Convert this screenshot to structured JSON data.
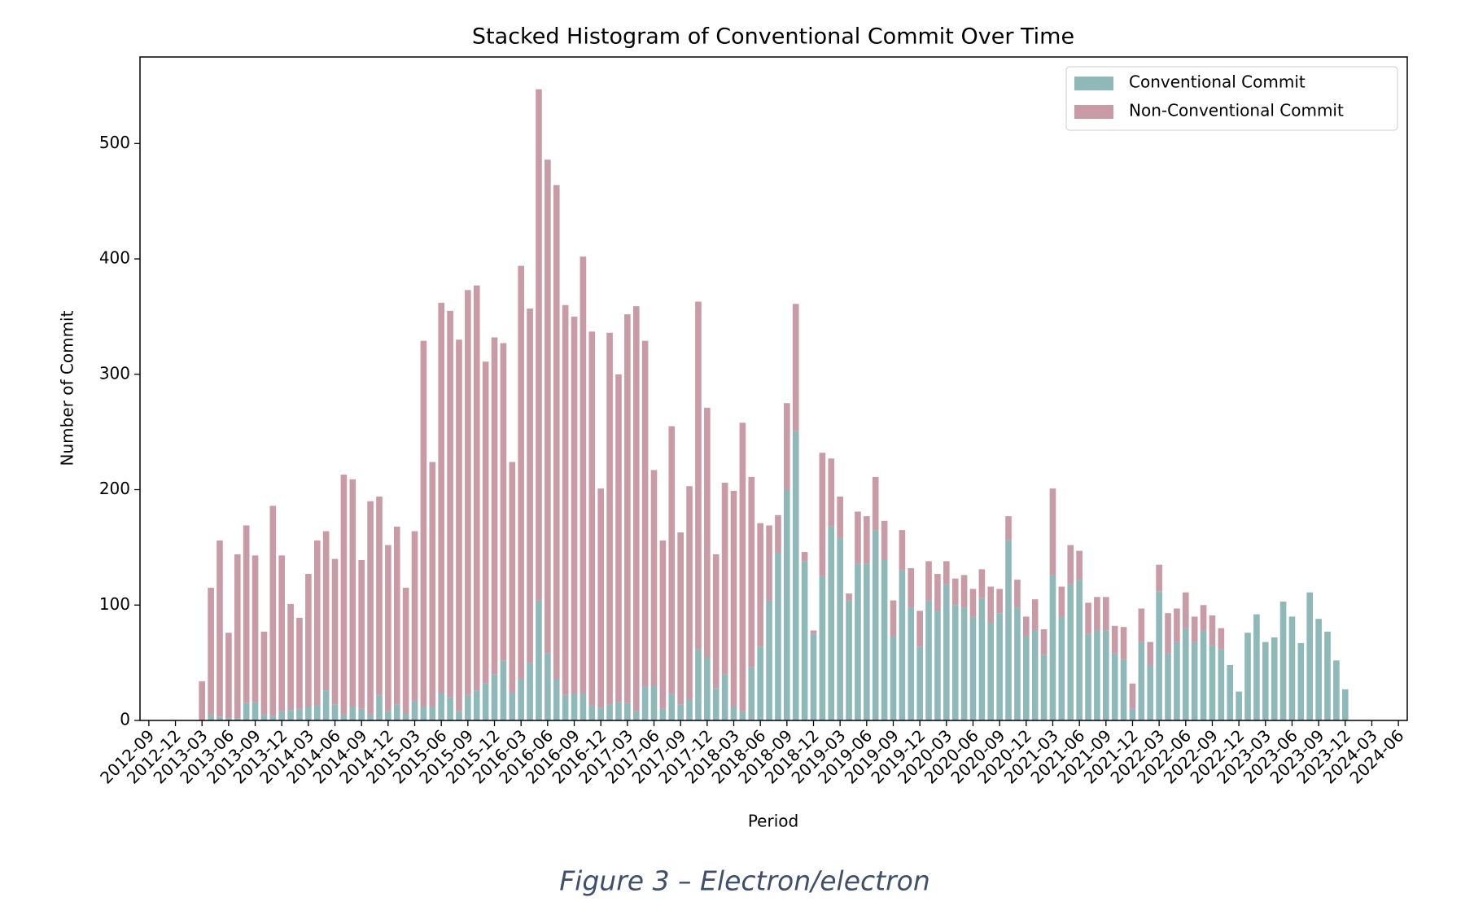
{
  "chart_data": {
    "type": "histogram_stacked",
    "title": "Stacked Histogram of Conventional Commit Over Time",
    "xlabel": "Period",
    "ylabel": "Number of Commit",
    "caption": "Figure 3 – Electron/electron",
    "x": [
      "2013-03",
      "2013-04",
      "2013-05",
      "2013-06",
      "2013-07",
      "2013-08",
      "2013-09",
      "2013-10",
      "2013-11",
      "2013-12",
      "2014-01",
      "2014-02",
      "2014-03",
      "2014-04",
      "2014-05",
      "2014-06",
      "2014-07",
      "2014-08",
      "2014-09",
      "2014-10",
      "2014-11",
      "2014-12",
      "2015-01",
      "2015-02",
      "2015-03",
      "2015-04",
      "2015-05",
      "2015-06",
      "2015-07",
      "2015-08",
      "2015-09",
      "2015-10",
      "2015-11",
      "2015-12",
      "2016-01",
      "2016-02",
      "2016-03",
      "2016-04",
      "2016-05",
      "2016-06",
      "2016-07",
      "2016-08",
      "2016-09",
      "2016-10",
      "2016-11",
      "2016-12",
      "2017-01",
      "2017-02",
      "2017-03",
      "2017-04",
      "2017-05",
      "2017-06",
      "2017-07",
      "2017-08",
      "2017-09",
      "2017-10",
      "2017-11",
      "2017-12",
      "2018-01",
      "2018-02",
      "2018-03",
      "2018-04",
      "2018-05",
      "2018-06",
      "2018-07",
      "2018-08",
      "2018-09",
      "2018-10",
      "2018-11",
      "2018-12",
      "2019-01",
      "2019-02",
      "2019-03",
      "2019-04",
      "2019-05",
      "2019-06",
      "2019-07",
      "2019-08",
      "2019-09",
      "2019-10",
      "2019-11",
      "2019-12",
      "2020-01",
      "2020-02",
      "2020-03",
      "2020-04",
      "2020-05",
      "2020-06",
      "2020-07",
      "2020-08",
      "2020-09",
      "2020-10",
      "2020-11",
      "2020-12",
      "2021-01",
      "2021-02",
      "2021-03",
      "2021-04",
      "2021-05",
      "2021-06",
      "2021-07",
      "2021-08",
      "2021-09",
      "2021-10",
      "2021-11",
      "2021-12",
      "2022-01",
      "2022-02",
      "2022-03",
      "2022-04",
      "2022-05",
      "2022-06",
      "2022-07",
      "2022-08",
      "2022-09",
      "2022-10",
      "2022-11",
      "2022-12",
      "2023-01",
      "2023-02",
      "2023-03",
      "2023-04",
      "2023-05",
      "2023-06",
      "2023-07",
      "2023-08",
      "2023-09",
      "2023-10",
      "2023-11",
      "2023-12"
    ],
    "series": [
      {
        "name": "Conventional Commit",
        "color": "#8fb8b8",
        "values": [
          0,
          5,
          3,
          2,
          2,
          15,
          16,
          5,
          4,
          8,
          9,
          10,
          12,
          13,
          26,
          14,
          5,
          12,
          10,
          5,
          22,
          8,
          14,
          6,
          17,
          12,
          12,
          24,
          20,
          8,
          22,
          26,
          32,
          40,
          52,
          24,
          36,
          50,
          104,
          58,
          36,
          22,
          24,
          24,
          13,
          11,
          14,
          16,
          15,
          8,
          29,
          30,
          10,
          23,
          14,
          18,
          62,
          54,
          28,
          40,
          12,
          8,
          46,
          64,
          104,
          145,
          200,
          251,
          138,
          75,
          125,
          168,
          158,
          104,
          136,
          136,
          165,
          139,
          73,
          130,
          98,
          64,
          104,
          95,
          118,
          100,
          98,
          90,
          106,
          85,
          93,
          156,
          98,
          73,
          78,
          57,
          126,
          90,
          118,
          122,
          75,
          78,
          78,
          58,
          53,
          10,
          68,
          48,
          112,
          58,
          68,
          80,
          68,
          78,
          65,
          62,
          48,
          25,
          76,
          92,
          68,
          72,
          103,
          90,
          67,
          111,
          88,
          77,
          52,
          27
        ]
      },
      {
        "name": "Non-Conventional Commit",
        "color": "#c89ba6",
        "values": [
          34,
          110,
          153,
          74,
          142,
          154,
          127,
          72,
          182,
          135,
          92,
          79,
          115,
          143,
          138,
          126,
          208,
          197,
          129,
          185,
          172,
          144,
          154,
          109,
          147,
          317,
          212,
          338,
          335,
          322,
          351,
          351,
          279,
          292,
          275,
          200,
          358,
          307,
          443,
          428,
          428,
          338,
          326,
          378,
          324,
          190,
          322,
          284,
          337,
          351,
          300,
          187,
          146,
          232,
          149,
          185,
          301,
          217,
          116,
          166,
          187,
          250,
          165,
          107,
          65,
          33,
          75,
          110,
          8,
          3,
          107,
          59,
          36,
          6,
          45,
          41,
          46,
          34,
          31,
          35,
          34,
          31,
          34,
          32,
          20,
          23,
          28,
          24,
          25,
          31,
          21,
          21,
          24,
          17,
          27,
          22,
          75,
          26,
          34,
          25,
          27,
          29,
          29,
          24,
          28,
          22,
          29,
          20,
          23,
          35,
          29,
          31,
          22,
          22,
          26,
          18,
          0,
          0,
          0,
          0,
          0,
          0,
          0,
          0,
          0,
          0,
          0,
          0,
          0,
          0
        ]
      }
    ],
    "xlim": [
      "2012-08",
      "2024-07"
    ],
    "xticks": [
      "2012-09",
      "2012-12",
      "2013-03",
      "2013-06",
      "2013-09",
      "2013-12",
      "2014-03",
      "2014-06",
      "2014-09",
      "2014-12",
      "2015-03",
      "2015-06",
      "2015-09",
      "2015-12",
      "2016-03",
      "2016-06",
      "2016-09",
      "2016-12",
      "2017-03",
      "2017-06",
      "2017-09",
      "2017-12",
      "2018-03",
      "2018-06",
      "2018-09",
      "2018-12",
      "2019-03",
      "2019-06",
      "2019-09",
      "2019-12",
      "2020-03",
      "2020-06",
      "2020-09",
      "2020-12",
      "2021-03",
      "2021-06",
      "2021-09",
      "2021-12",
      "2022-03",
      "2022-06",
      "2022-09",
      "2022-12",
      "2023-03",
      "2023-06",
      "2023-09",
      "2023-12",
      "2024-03",
      "2024-06"
    ],
    "ylim": [
      0,
      575
    ],
    "yticks": [
      0,
      100,
      200,
      300,
      400,
      500
    ],
    "grid": false,
    "legend": "upper right"
  }
}
